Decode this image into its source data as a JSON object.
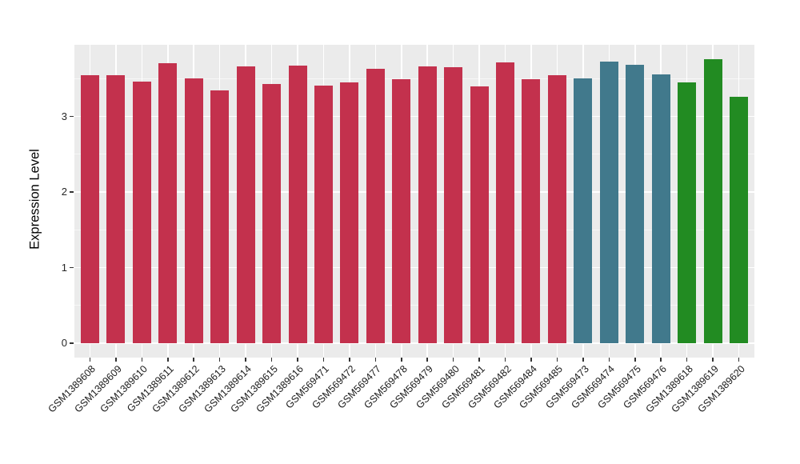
{
  "figure": {
    "background": "#FFFFFF",
    "panel_background": "#EBEBEB",
    "grid_color": "#FFFFFF",
    "tick_color": "#333333",
    "text_color": "#1A1A1A"
  },
  "chart_data": {
    "type": "bar",
    "title": "",
    "xlabel": "",
    "ylabel": "Expression Level",
    "grid": "on",
    "legend": "none",
    "ylim": [
      0,
      3.95
    ],
    "y_ticks": [
      0,
      1,
      2,
      3
    ],
    "y_tick_labels": [
      "0",
      "1",
      "2",
      "3"
    ],
    "y_minor_ticks": [
      0.5,
      1.5,
      2.5,
      3.5
    ],
    "categories": [
      "GSM1389608",
      "GSM1389609",
      "GSM1389610",
      "GSM1389611",
      "GSM1389612",
      "GSM1389613",
      "GSM1389614",
      "GSM1389615",
      "GSM1389616",
      "GSM569471",
      "GSM569472",
      "GSM569477",
      "GSM569478",
      "GSM569479",
      "GSM569480",
      "GSM569481",
      "GSM569482",
      "GSM569484",
      "GSM569485",
      "GSM569473",
      "GSM569474",
      "GSM569475",
      "GSM569476",
      "GSM1389618",
      "GSM1389619",
      "GSM1389620"
    ],
    "values": [
      3.54,
      3.55,
      3.46,
      3.7,
      3.5,
      3.34,
      3.66,
      3.43,
      3.67,
      3.41,
      3.45,
      3.63,
      3.49,
      3.66,
      3.65,
      3.4,
      3.71,
      3.49,
      3.55,
      3.5,
      3.73,
      3.68,
      3.56,
      3.45,
      3.76,
      3.26
    ],
    "bar_colors": [
      "#C3314D",
      "#C3314D",
      "#C3314D",
      "#C3314D",
      "#C3314D",
      "#C3314D",
      "#C3314D",
      "#C3314D",
      "#C3314D",
      "#C3314D",
      "#C3314D",
      "#C3314D",
      "#C3314D",
      "#C3314D",
      "#C3314D",
      "#C3314D",
      "#C3314D",
      "#C3314D",
      "#C3314D",
      "#41798C",
      "#41798C",
      "#41798C",
      "#41798C",
      "#228B22",
      "#228B22",
      "#228B22"
    ],
    "color_palette": {
      "crimson": "#C3314D",
      "teal": "#41798C",
      "green": "#228B22"
    }
  }
}
